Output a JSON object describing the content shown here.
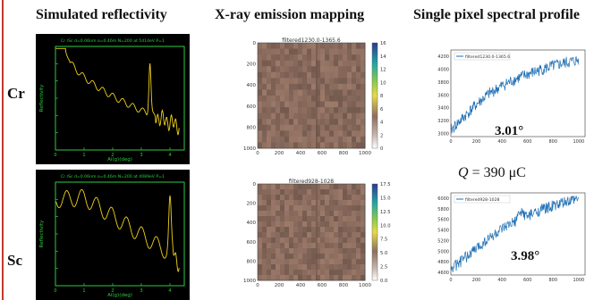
{
  "headers": {
    "col1": "Simulated reflectivity",
    "col2": "X-ray emission mapping",
    "col3": "Single pixel spectral profile"
  },
  "rows": [
    {
      "label": "Cr",
      "reflectivity": {
        "caption": "Cr /Sc d=0.06nm a=0.46m N=200 at 5414eV P=1",
        "xlabel": "Ai(g)(deg)",
        "ylabel": "Reflectivity",
        "peaks_deg": [
          0.6,
          3.3
        ],
        "xlim": [
          0,
          4.5
        ]
      },
      "map": {
        "title": "filtered1230.0-1365.6",
        "x_ticks": [
          "0",
          "200",
          "400",
          "600",
          "800",
          "1000"
        ],
        "y_ticks": [
          "0",
          "200",
          "400",
          "600",
          "800",
          "1000"
        ],
        "colorbar_ticks": [
          "16",
          "14",
          "12",
          "10",
          "8",
          "6",
          "4",
          "2",
          "0"
        ],
        "colorbar_range": [
          0,
          16
        ]
      },
      "spectrum": {
        "legend": "filtered1230.0-1365.6",
        "x_ticks": [
          "0",
          "200",
          "400",
          "600",
          "800",
          "1000"
        ],
        "y_ticks": [
          "4200",
          "4000",
          "3800",
          "3600",
          "3400",
          "3200",
          "3000"
        ],
        "ylim": [
          2950,
          4300
        ],
        "trend": [
          {
            "x": 0,
            "y": 3050
          },
          {
            "x": 100,
            "y": 3250
          },
          {
            "x": 200,
            "y": 3450
          },
          {
            "x": 300,
            "y": 3620
          },
          {
            "x": 400,
            "y": 3740
          },
          {
            "x": 500,
            "y": 3840
          },
          {
            "x": 600,
            "y": 3920
          },
          {
            "x": 700,
            "y": 3990
          },
          {
            "x": 800,
            "y": 4050
          },
          {
            "x": 900,
            "y": 4100
          },
          {
            "x": 1000,
            "y": 4140
          }
        ],
        "annotation": "3.01°"
      }
    },
    {
      "label": "Sc",
      "reflectivity": {
        "caption": "Cr /Sc d=0.06nm a=0.46m N=200 at 4089eV P=1",
        "xlabel": "Ai(g)(deg)",
        "ylabel": "Reflectivity",
        "peaks_deg": [
          1.5,
          4.0
        ],
        "xlim": [
          0,
          4.5
        ]
      },
      "map": {
        "title": "filtered928-1028",
        "x_ticks": [
          "0",
          "200",
          "400",
          "600",
          "800",
          "1000"
        ],
        "y_ticks": [
          "0",
          "200",
          "400",
          "600",
          "800",
          "1000"
        ],
        "colorbar_ticks": [
          "17.5",
          "15.0",
          "12.5",
          "10.0",
          "7.5",
          "5.0",
          "2.5",
          "0.0"
        ],
        "colorbar_range": [
          0,
          17.5
        ]
      },
      "spectrum": {
        "legend": "filtered928-1028",
        "x_ticks": [
          "0",
          "200",
          "400",
          "600",
          "800",
          "1000"
        ],
        "y_ticks": [
          "6000",
          "5800",
          "5600",
          "5400",
          "5200",
          "5000",
          "4800",
          "4600"
        ],
        "ylim": [
          4550,
          6100
        ],
        "trend": [
          {
            "x": 0,
            "y": 4650
          },
          {
            "x": 100,
            "y": 4850
          },
          {
            "x": 200,
            "y": 5050
          },
          {
            "x": 300,
            "y": 5250
          },
          {
            "x": 400,
            "y": 5400
          },
          {
            "x": 500,
            "y": 5550
          },
          {
            "x": 550,
            "y": 5750
          },
          {
            "x": 600,
            "y": 5650
          },
          {
            "x": 700,
            "y": 5780
          },
          {
            "x": 800,
            "y": 5850
          },
          {
            "x": 900,
            "y": 5920
          },
          {
            "x": 1000,
            "y": 5980
          }
        ],
        "annotation": "3.98°"
      }
    }
  ],
  "charge": {
    "symbol": "Q",
    "text": " = 390 μC"
  }
}
